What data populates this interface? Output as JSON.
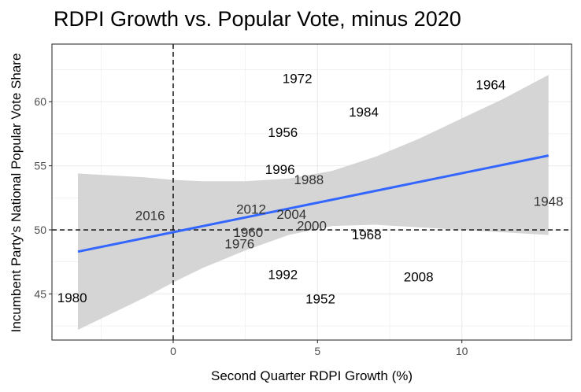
{
  "chart_data": {
    "type": "scatter",
    "title": "RDPI Growth vs. Popular Vote, minus 2020",
    "xlabel": "Second Quarter RDPI Growth (%)",
    "ylabel": "Incumbent Party's National Popular Vote Share",
    "xlim": [
      -4.2,
      13.8
    ],
    "ylim": [
      41.4,
      64.5
    ],
    "x_ticks": [
      0,
      5,
      10
    ],
    "y_ticks": [
      45,
      50,
      55,
      60
    ],
    "grid": true,
    "points": [
      {
        "label": "1948",
        "x": 13.0,
        "y": 52.2
      },
      {
        "label": "1952",
        "x": 5.1,
        "y": 44.6
      },
      {
        "label": "1956",
        "x": 3.8,
        "y": 57.6
      },
      {
        "label": "1960",
        "x": 2.6,
        "y": 49.8
      },
      {
        "label": "1964",
        "x": 11.0,
        "y": 61.3
      },
      {
        "label": "1968",
        "x": 6.7,
        "y": 49.6
      },
      {
        "label": "1972",
        "x": 4.3,
        "y": 61.8
      },
      {
        "label": "1976",
        "x": 2.3,
        "y": 48.9
      },
      {
        "label": "1980",
        "x": -3.5,
        "y": 44.7
      },
      {
        "label": "1984",
        "x": 6.6,
        "y": 59.2
      },
      {
        "label": "1988",
        "x": 4.7,
        "y": 53.9
      },
      {
        "label": "1992",
        "x": 3.8,
        "y": 46.5
      },
      {
        "label": "1996",
        "x": 3.7,
        "y": 54.7
      },
      {
        "label": "2000",
        "x": 4.8,
        "y": 50.3
      },
      {
        "label": "2004",
        "x": 4.1,
        "y": 51.2
      },
      {
        "label": "2008",
        "x": 8.5,
        "y": 46.3
      },
      {
        "label": "2012",
        "x": 2.7,
        "y": 51.6
      },
      {
        "label": "2016",
        "x": -0.8,
        "y": 51.1
      }
    ],
    "fit_line": {
      "x": [
        -3.3,
        13.0
      ],
      "y": [
        48.3,
        55.8
      ]
    },
    "confidence_band": {
      "x": [
        -3.3,
        -1.0,
        0.0,
        1.0,
        2.5,
        4.0,
        5.5,
        7.0,
        8.5,
        10.0,
        11.5,
        13.0
      ],
      "lower": [
        42.2,
        44.7,
        45.9,
        47.0,
        48.4,
        49.6,
        50.3,
        50.4,
        50.2,
        50.0,
        49.8,
        49.6
      ],
      "upper": [
        54.4,
        54.1,
        53.9,
        53.8,
        53.8,
        54.0,
        54.6,
        55.7,
        57.1,
        58.7,
        60.3,
        62.1
      ]
    },
    "reference_lines": {
      "x": 0,
      "y": 50
    },
    "colors": {
      "fit_line": "#3366FF",
      "band": "#D3D3D3",
      "grid": "#EBEBEB",
      "labels_inside_band": "#333333",
      "labels_outside_band": "#000000"
    }
  }
}
